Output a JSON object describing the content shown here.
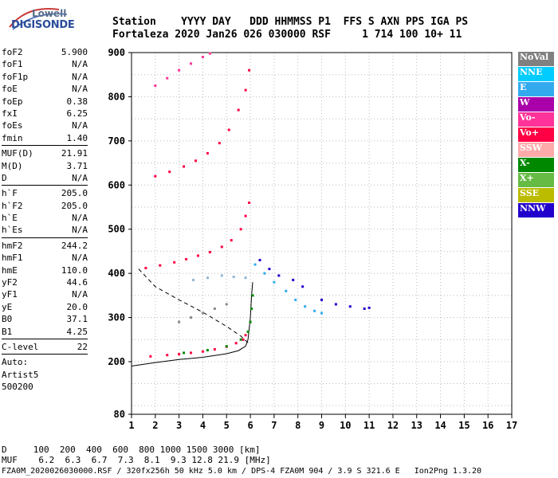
{
  "logo": {
    "line1": "Lowell",
    "line2": "DIGISONDE"
  },
  "header": {
    "line1": "Station    YYYY DAY   DDD HHMMSS P1  FFS S AXN PPS IGA PS",
    "line2": "Fortaleza 2020 Jan26 026 030000 RSF     1 714 100 10+ 11"
  },
  "params": [
    {
      "k": "foF2",
      "v": "5.900"
    },
    {
      "k": "foF1",
      "v": "N/A"
    },
    {
      "k": "foF1p",
      "v": "N/A"
    },
    {
      "k": "foE",
      "v": "N/A"
    },
    {
      "k": "foEp",
      "v": "0.38"
    },
    {
      "k": "fxI",
      "v": "6.25"
    },
    {
      "k": "foEs",
      "v": "N/A"
    },
    {
      "k": "fmin",
      "v": "1.40"
    },
    {
      "sep": true
    },
    {
      "k": "MUF(D)",
      "v": "21.91"
    },
    {
      "k": "M(D)",
      "v": "3.71"
    },
    {
      "k": "D",
      "v": "N/A"
    },
    {
      "sep": true
    },
    {
      "k": "h`F",
      "v": "205.0"
    },
    {
      "k": "h`F2",
      "v": "205.0"
    },
    {
      "k": "h`E",
      "v": "N/A"
    },
    {
      "k": "h`Es",
      "v": "N/A"
    },
    {
      "sep": true
    },
    {
      "k": "hmF2",
      "v": "244.2"
    },
    {
      "k": "hmF1",
      "v": "N/A"
    },
    {
      "k": "hmE",
      "v": "110.0"
    },
    {
      "k": "yF2",
      "v": "44.6"
    },
    {
      "k": "yF1",
      "v": "N/A"
    },
    {
      "k": "yE",
      "v": "20.0"
    },
    {
      "k": "B0",
      "v": "37.1"
    },
    {
      "k": "B1",
      "v": "4.25"
    },
    {
      "sep": true
    },
    {
      "k": "C-level",
      "v": "22"
    },
    {
      "sep": true
    },
    {
      "t": "Auto:"
    },
    {
      "t": "Artist5"
    },
    {
      "t": "500200"
    }
  ],
  "legend": [
    {
      "label": "NoVal",
      "color": "#808080"
    },
    {
      "label": "NNE",
      "color": "#00ccff"
    },
    {
      "label": "E",
      "color": "#33aaee"
    },
    {
      "label": "W",
      "color": "#aa00aa"
    },
    {
      "label": "Vo-",
      "color": "#ff3399"
    },
    {
      "label": "Vo+",
      "color": "#ff0044"
    },
    {
      "label": "SSW",
      "color": "#ffaaaa"
    },
    {
      "label": "X-",
      "color": "#008800"
    },
    {
      "label": "X+",
      "color": "#66bb44"
    },
    {
      "label": "SSE",
      "color": "#bbbb00"
    },
    {
      "label": "NNW",
      "color": "#2200cc"
    }
  ],
  "footer": {
    "line1": "D     100  200  400  600  800 1000 1500 3000 [km]",
    "line2": "MUF    6.2  6.3  6.7  7.3  8.1  9.3 12.8 21.9 [MHz]",
    "line3": "FZA0M_2020026030000.RSF / 320fx256h 50 kHz 5.0 km / DPS-4 FZA0M 904 / 3.9 S 321.6 E   Ion2Png 1.3.20"
  },
  "chart_data": {
    "type": "scatter",
    "title": "",
    "xlabel": "",
    "ylabel": "",
    "xlim": [
      1,
      17
    ],
    "ylim": [
      80,
      900
    ],
    "xticks": [
      1,
      2,
      3,
      4,
      5,
      6,
      7,
      8,
      9,
      10,
      11,
      12,
      13,
      14,
      15,
      16,
      17
    ],
    "yticks": [
      80,
      200,
      300,
      400,
      500,
      600,
      700,
      800,
      900
    ],
    "grid": true,
    "series": [
      {
        "name": "Vo+",
        "color": "#ff0044",
        "points": [
          [
            1.8,
            212
          ],
          [
            2.5,
            215
          ],
          [
            3.0,
            217
          ],
          [
            3.5,
            220
          ],
          [
            4.0,
            223
          ],
          [
            4.5,
            228
          ],
          [
            5.0,
            234
          ],
          [
            5.4,
            242
          ],
          [
            5.7,
            250
          ],
          [
            5.8,
            260
          ]
        ]
      },
      {
        "name": "X-",
        "color": "#008800",
        "points": [
          [
            3.2,
            220
          ],
          [
            4.2,
            226
          ],
          [
            5.0,
            235
          ],
          [
            5.6,
            250
          ],
          [
            5.9,
            268
          ],
          [
            6.0,
            290
          ],
          [
            6.05,
            320
          ],
          [
            6.1,
            350
          ]
        ]
      },
      {
        "name": "Vo+",
        "color": "#ff0044",
        "points": [
          [
            1.6,
            412
          ],
          [
            2.2,
            418
          ],
          [
            2.8,
            425
          ],
          [
            3.3,
            432
          ],
          [
            3.8,
            440
          ],
          [
            4.3,
            448
          ],
          [
            4.8,
            460
          ],
          [
            5.2,
            475
          ],
          [
            5.6,
            500
          ],
          [
            5.8,
            530
          ],
          [
            5.95,
            560
          ]
        ]
      },
      {
        "name": "Vo+",
        "color": "#ff0044",
        "points": [
          [
            2.0,
            620
          ],
          [
            2.6,
            630
          ],
          [
            3.2,
            642
          ],
          [
            3.7,
            655
          ],
          [
            4.2,
            672
          ],
          [
            4.7,
            695
          ],
          [
            5.1,
            725
          ],
          [
            5.5,
            770
          ],
          [
            5.8,
            815
          ],
          [
            5.95,
            860
          ]
        ]
      },
      {
        "name": "Vo-",
        "color": "#ff3399",
        "points": [
          [
            2.0,
            825
          ],
          [
            2.5,
            842
          ],
          [
            3.0,
            860
          ],
          [
            3.5,
            875
          ],
          [
            4.0,
            890
          ],
          [
            4.3,
            898
          ]
        ]
      },
      {
        "name": "E",
        "color": "#33aaee",
        "points": [
          [
            6.2,
            420
          ],
          [
            6.6,
            400
          ],
          [
            7.0,
            380
          ],
          [
            7.5,
            360
          ],
          [
            7.9,
            340
          ],
          [
            8.3,
            325
          ],
          [
            8.7,
            315
          ],
          [
            9.0,
            310
          ]
        ]
      },
      {
        "name": "NNW",
        "color": "#2200cc",
        "points": [
          [
            6.4,
            430
          ],
          [
            6.8,
            410
          ],
          [
            7.2,
            395
          ],
          [
            7.8,
            385
          ],
          [
            8.2,
            370
          ],
          [
            9.0,
            340
          ],
          [
            9.6,
            330
          ],
          [
            10.2,
            325
          ],
          [
            10.8,
            320
          ],
          [
            11.0,
            322
          ]
        ]
      },
      {
        "name": "",
        "color": "#888888",
        "points": [
          [
            3.0,
            290
          ],
          [
            3.5,
            300
          ],
          [
            4.0,
            310
          ],
          [
            4.5,
            320
          ],
          [
            5.0,
            330
          ]
        ]
      },
      {
        "name": "",
        "color": "#8fb6d6",
        "points": [
          [
            3.6,
            385
          ],
          [
            4.2,
            390
          ],
          [
            4.8,
            395
          ],
          [
            5.3,
            392
          ],
          [
            5.8,
            390
          ]
        ]
      }
    ],
    "profile_solid": [
      [
        1.0,
        190
      ],
      [
        2.0,
        198
      ],
      [
        3.0,
        205
      ],
      [
        4.0,
        210
      ],
      [
        5.0,
        218
      ],
      [
        5.5,
        225
      ],
      [
        5.8,
        235
      ],
      [
        5.9,
        250
      ],
      [
        6.0,
        300
      ],
      [
        6.05,
        350
      ],
      [
        6.1,
        380
      ]
    ],
    "profile_dashed": [
      [
        1.3,
        410
      ],
      [
        2.0,
        370
      ],
      [
        3.0,
        340
      ],
      [
        4.0,
        312
      ],
      [
        5.0,
        280
      ],
      [
        5.6,
        258
      ],
      [
        6.0,
        238
      ]
    ]
  }
}
